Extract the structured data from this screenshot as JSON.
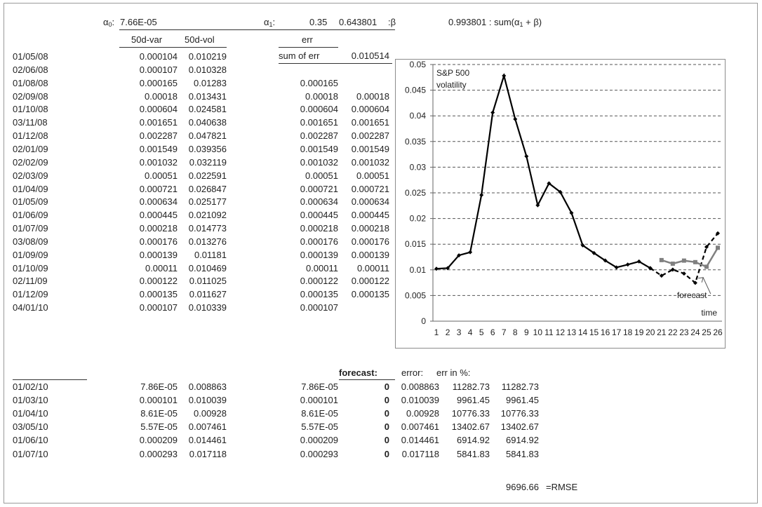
{
  "params": {
    "a0_sym": "α",
    "a0_sub": "0",
    "a0_colon": ":",
    "a0_value": "7.66E-05",
    "a1_sym": "α",
    "a1_sub": "1",
    "a1_colon": ":",
    "a1_value": "0.35",
    "beta_value": "0.643801",
    "beta_label": ":β",
    "sum_value": "0.993801",
    "sum_label_a": ": sum(α",
    "sum_label_sub": "1",
    "sum_label_b": " + β)"
  },
  "headers": {
    "var": "50d-var",
    "vol": "50d-vol",
    "err": "err"
  },
  "sum_of_err_label": "sum of err",
  "sum_of_err_value": "0.010514",
  "rows": [
    {
      "date": "01/05/08",
      "var": "0.000104",
      "vol": "0.010219",
      "err1": "",
      "err2": ""
    },
    {
      "date": "02/06/08",
      "var": "0.000107",
      "vol": "0.010328",
      "err1": "",
      "err2": ""
    },
    {
      "date": "01/08/08",
      "var": "0.000165",
      "vol": "0.01283",
      "err1": "0.000165",
      "err2": ""
    },
    {
      "date": "02/09/08",
      "var": "0.00018",
      "vol": "0.013431",
      "err1": "0.00018",
      "err2": "0.00018"
    },
    {
      "date": "01/10/08",
      "var": "0.000604",
      "vol": "0.024581",
      "err1": "0.000604",
      "err2": "0.000604"
    },
    {
      "date": "03/11/08",
      "var": "0.001651",
      "vol": "0.040638",
      "err1": "0.001651",
      "err2": "0.001651"
    },
    {
      "date": "01/12/08",
      "var": "0.002287",
      "vol": "0.047821",
      "err1": "0.002287",
      "err2": "0.002287"
    },
    {
      "date": "02/01/09",
      "var": "0.001549",
      "vol": "0.039356",
      "err1": "0.001549",
      "err2": "0.001549"
    },
    {
      "date": "02/02/09",
      "var": "0.001032",
      "vol": "0.032119",
      "err1": "0.001032",
      "err2": "0.001032"
    },
    {
      "date": "02/03/09",
      "var": "0.00051",
      "vol": "0.022591",
      "err1": "0.00051",
      "err2": "0.00051"
    },
    {
      "date": "01/04/09",
      "var": "0.000721",
      "vol": "0.026847",
      "err1": "0.000721",
      "err2": "0.000721"
    },
    {
      "date": "01/05/09",
      "var": "0.000634",
      "vol": "0.025177",
      "err1": "0.000634",
      "err2": "0.000634"
    },
    {
      "date": "01/06/09",
      "var": "0.000445",
      "vol": "0.021092",
      "err1": "0.000445",
      "err2": "0.000445"
    },
    {
      "date": "01/07/09",
      "var": "0.000218",
      "vol": "0.014773",
      "err1": "0.000218",
      "err2": "0.000218"
    },
    {
      "date": "03/08/09",
      "var": "0.000176",
      "vol": "0.013276",
      "err1": "0.000176",
      "err2": "0.000176"
    },
    {
      "date": "01/09/09",
      "var": "0.000139",
      "vol": "0.01181",
      "err1": "0.000139",
      "err2": "0.000139"
    },
    {
      "date": "01/10/09",
      "var": "0.00011",
      "vol": "0.010469",
      "err1": "0.00011",
      "err2": "0.00011"
    },
    {
      "date": "02/11/09",
      "var": "0.000122",
      "vol": "0.011025",
      "err1": "0.000122",
      "err2": "0.000122"
    },
    {
      "date": "01/12/09",
      "var": "0.000135",
      "vol": "0.011627",
      "err1": "0.000135",
      "err2": "0.000135"
    },
    {
      "date": "04/01/10",
      "var": "0.000107",
      "vol": "0.010339",
      "err1": "0.000107",
      "err2": ""
    }
  ],
  "forecast_headers": {
    "forecast": "forecast:",
    "error": "error:",
    "err_pct": "err in %:"
  },
  "forecast_rows": [
    {
      "date": "01/02/10",
      "var": "7.86E-05",
      "vol": "0.008863",
      "err1": "7.86E-05",
      "forecast": "0",
      "error": "0.008863",
      "pct1": "11282.73",
      "pct2": "11282.73"
    },
    {
      "date": "01/03/10",
      "var": "0.000101",
      "vol": "0.010039",
      "err1": "0.000101",
      "forecast": "0",
      "error": "0.010039",
      "pct1": "9961.45",
      "pct2": "9961.45"
    },
    {
      "date": "01/04/10",
      "var": "8.61E-05",
      "vol": "0.00928",
      "err1": "8.61E-05",
      "forecast": "0",
      "error": "0.00928",
      "pct1": "10776.33",
      "pct2": "10776.33"
    },
    {
      "date": "03/05/10",
      "var": "5.57E-05",
      "vol": "0.007461",
      "err1": "5.57E-05",
      "forecast": "0",
      "error": "0.007461",
      "pct1": "13402.67",
      "pct2": "13402.67"
    },
    {
      "date": "01/06/10",
      "var": "0.000209",
      "vol": "0.014461",
      "err1": "0.000209",
      "forecast": "0",
      "error": "0.014461",
      "pct1": "6914.92",
      "pct2": "6914.92"
    },
    {
      "date": "01/07/10",
      "var": "0.000293",
      "vol": "0.017118",
      "err1": "0.000293",
      "forecast": "0",
      "error": "0.017118",
      "pct1": "5841.83",
      "pct2": "5841.83"
    }
  ],
  "rmse": {
    "value": "9696.66",
    "label": "=RMSE"
  },
  "chart_data": {
    "type": "line",
    "title": "S&P 500 volatility",
    "title_lines": [
      "S&P 500",
      "volatility"
    ],
    "xlabel": "time",
    "annotation": "forecast",
    "x": [
      1,
      2,
      3,
      4,
      5,
      6,
      7,
      8,
      9,
      10,
      11,
      12,
      13,
      14,
      15,
      16,
      17,
      18,
      19,
      20,
      21,
      22,
      23,
      24,
      25,
      26
    ],
    "xlim": [
      1,
      26
    ],
    "ylim": [
      0,
      0.05
    ],
    "yticks": [
      0,
      0.005,
      0.01,
      0.015,
      0.02,
      0.025,
      0.03,
      0.035,
      0.04,
      0.045,
      0.05
    ],
    "ytick_labels": [
      "0",
      "0.005",
      "0.01",
      "0.015",
      "0.02",
      "0.025",
      "0.03",
      "0.035",
      "0.04",
      "0.045",
      "0.05"
    ],
    "grid": true,
    "series": [
      {
        "style": "solid",
        "color": "#000000",
        "marker": "diamond",
        "x": [
          1,
          2,
          3,
          4,
          5,
          6,
          7,
          8,
          9,
          10,
          11,
          12,
          13,
          14,
          15,
          16,
          17,
          18,
          19,
          20
        ],
        "values": [
          0.010219,
          0.010328,
          0.01283,
          0.013431,
          0.024581,
          0.040638,
          0.047821,
          0.039356,
          0.032119,
          0.022591,
          0.026847,
          0.025177,
          0.021092,
          0.014773,
          0.013276,
          0.01181,
          0.010469,
          0.011025,
          0.011627,
          0.010339
        ]
      },
      {
        "style": "dashed",
        "color": "#000000",
        "marker": "diamond",
        "x": [
          20,
          21,
          22,
          23,
          24,
          25,
          26
        ],
        "values": [
          0.010339,
          0.008863,
          0.010039,
          0.00928,
          0.007461,
          0.014461,
          0.017118
        ]
      },
      {
        "style": "solid",
        "color": "#808080",
        "marker": "square",
        "x": [
          21,
          22,
          23,
          24,
          25,
          26
        ],
        "values": [
          0.0119,
          0.0112,
          0.0118,
          0.0115,
          0.0106,
          0.0143
        ]
      }
    ]
  }
}
